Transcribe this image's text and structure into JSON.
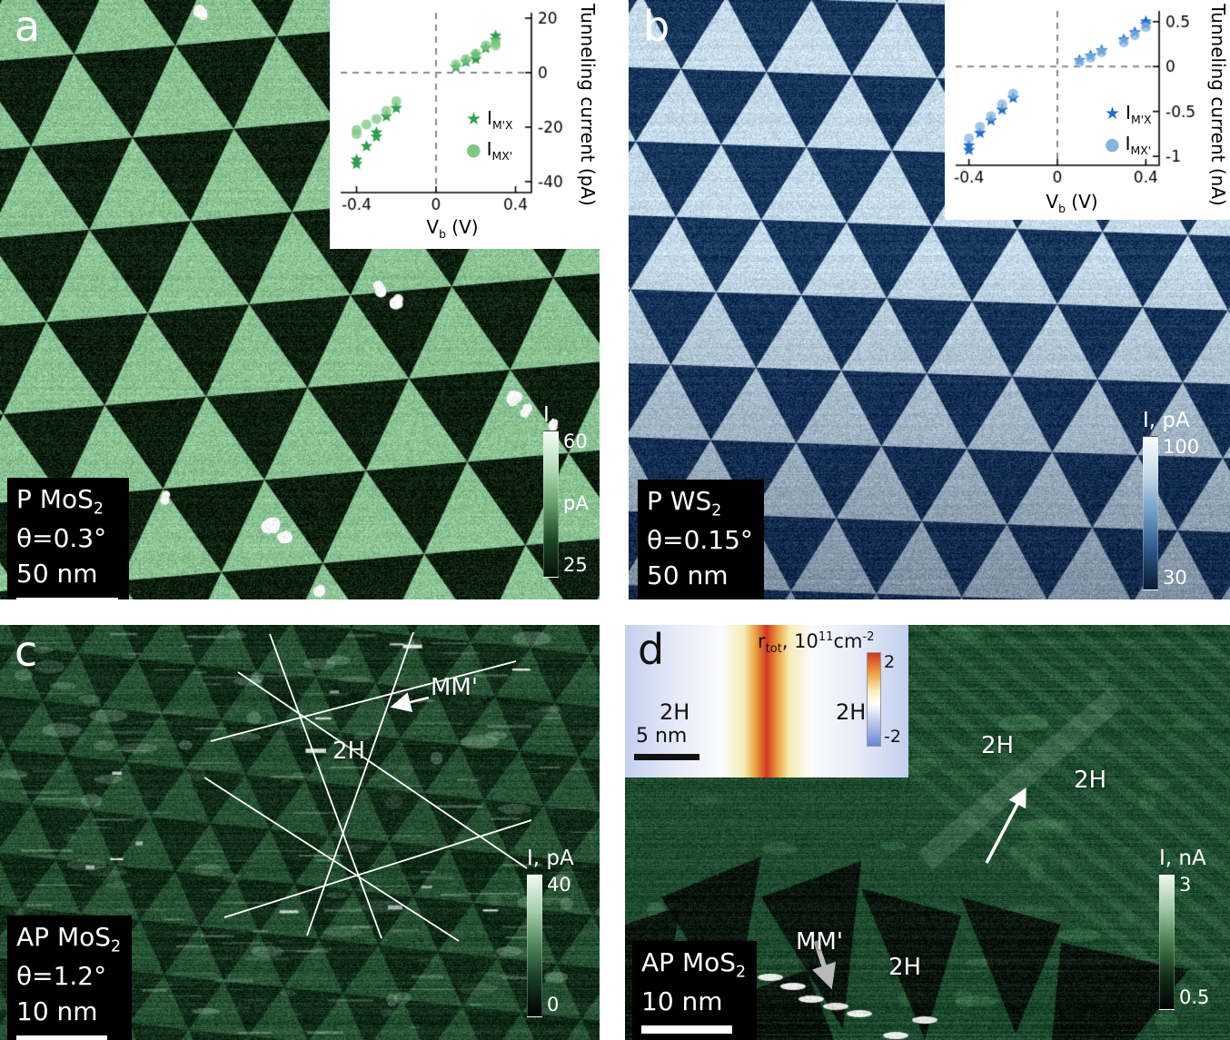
{
  "panels": {
    "a": {
      "letter": "a",
      "info": {
        "sample_pre": "P MoS",
        "sample_sub": "2",
        "theta": "θ=0.3°",
        "scalebar_label": "50 nm"
      },
      "colorbar": {
        "title": "I,",
        "unit": "pA",
        "max": "60",
        "min": "25",
        "colors": [
          "#f8fcf8",
          "#b6dcba",
          "#63a06c",
          "#1d4524",
          "#04120a"
        ]
      },
      "image_colors": {
        "light": "#8ac394",
        "dark": "#0a1f0e"
      }
    },
    "b": {
      "letter": "b",
      "info": {
        "sample_pre": "P WS",
        "sample_sub": "2",
        "theta": "θ=0.15°",
        "scalebar_label": "50 nm"
      },
      "colorbar": {
        "title": "I, pA",
        "max": "100",
        "min": "30",
        "colors": [
          "#fbfdff",
          "#c4d8e8",
          "#6f9cc4",
          "#2a5586",
          "#0a1830"
        ]
      },
      "image_colors": {
        "light": "#c6dbea",
        "dark": "#16365c"
      }
    },
    "c": {
      "letter": "c",
      "info": {
        "sample_pre": "AP MoS",
        "sample_sub": "2",
        "theta": "θ=1.2°",
        "scalebar_label": "10 nm"
      },
      "colorbar": {
        "title": "I, pA",
        "max": "40",
        "min": "0",
        "colors": [
          "#f4faf4",
          "#a8cfae",
          "#4d855a",
          "#143820",
          "#000000"
        ]
      },
      "annotations": {
        "mm": "MM'",
        "h2": "2H"
      },
      "image_colors": {
        "light": "#3a7049",
        "dark": "#0e2a17"
      }
    },
    "d": {
      "letter": "d",
      "info": {
        "sample_pre": "AP MoS",
        "sample_sub": "2",
        "scalebar_label": "10 nm"
      },
      "colorbar": {
        "title": "I, nA",
        "max": "3",
        "min": "0.5",
        "colors": [
          "#f0f8f0",
          "#a0c8a8",
          "#48804f",
          "#123018",
          "#000000"
        ]
      },
      "annotations": {
        "h2_upper": "2H",
        "h2_mid": "2H",
        "mm": "MM'",
        "h2_lower": "2H"
      },
      "image_colors": {
        "light": "#5a9a68",
        "dark": "#1d4a2d"
      },
      "inset": {
        "title_pre": "r",
        "title_sub": "tot",
        "title_mid": ", 10",
        "title_sup": "11",
        "title_unit": "cm",
        "title_sup2": "-2",
        "left_label": "2H",
        "right_label": "2H",
        "scalebar_label": "5 nm",
        "cb_max": "2",
        "cb_min": "-2",
        "gradient": [
          [
            "#c2cfee",
            0
          ],
          [
            "#e6ebf8",
            18
          ],
          [
            "#fbfbfd",
            34
          ],
          [
            "#f7ecb6",
            42
          ],
          [
            "#eda23f",
            46
          ],
          [
            "#d03722",
            50
          ],
          [
            "#eda23f",
            54
          ],
          [
            "#f7ecb6",
            58
          ],
          [
            "#fbfbfd",
            66
          ],
          [
            "#e6ebf8",
            82
          ],
          [
            "#c2cfee",
            100
          ]
        ],
        "cb_colors": [
          [
            "#d03722",
            0
          ],
          [
            "#eda23f",
            22
          ],
          [
            "#f7ecb6",
            40
          ],
          [
            "#ffffff",
            55
          ],
          [
            "#b9c7ea",
            75
          ],
          [
            "#6a86d8",
            100
          ]
        ]
      }
    }
  },
  "iv_labels": {
    "x_pre": "V",
    "x_sub": "b",
    "x_post": " (V)",
    "star_glyph": "★",
    "circle_glyph": "●",
    "l1_pre": "I",
    "l1_sub": "M'X",
    "l2_pre": "I",
    "l2_sub": "MX'"
  },
  "chart_data": [
    {
      "type": "scatter",
      "panel": "a",
      "xlabel": "V_b (V)",
      "ylabel": "Tunneling current (pA)",
      "xlim": [
        -0.48,
        0.48
      ],
      "ylim": [
        -44,
        22
      ],
      "xticks": [
        -0.4,
        0,
        0.4
      ],
      "yticks": [
        20,
        0,
        -20,
        -40
      ],
      "grid": "dashed-crosshair",
      "legend_position": "lower-right",
      "series": [
        {
          "name": "I_M'X",
          "marker": "star",
          "color": "#2f9e4f",
          "x": [
            -0.4,
            -0.4,
            -0.35,
            -0.3,
            -0.3,
            -0.25,
            -0.2,
            0.1,
            0.15,
            0.2,
            0.2,
            0.25,
            0.3,
            0.3
          ],
          "y": [
            -32,
            -33.5,
            -27,
            -22,
            -23.5,
            -16,
            -13,
            2,
            4,
            5,
            6.5,
            9,
            12,
            13.5
          ]
        },
        {
          "name": "I_MX'",
          "marker": "circle",
          "color": "#7cc87f",
          "alpha": 0.75,
          "x": [
            -0.4,
            -0.4,
            -0.35,
            -0.3,
            -0.25,
            -0.2,
            0.1,
            0.15,
            0.2,
            0.25,
            0.3,
            0.3
          ],
          "y": [
            -21,
            -22.5,
            -19,
            -17,
            -14,
            -10.5,
            3,
            5,
            7,
            10,
            11,
            10
          ]
        }
      ]
    },
    {
      "type": "scatter",
      "panel": "b",
      "xlabel": "V_b (V)",
      "ylabel": "Tunneling current (nA)",
      "xlim": [
        -0.46,
        0.46
      ],
      "ylim": [
        -1.1,
        0.62
      ],
      "xticks": [
        -0.4,
        0,
        0.4
      ],
      "yticks": [
        0.5,
        0,
        -0.5,
        -1
      ],
      "grid": "dashed-crosshair",
      "legend_position": "lower-right",
      "series": [
        {
          "name": "I_M'X",
          "marker": "star",
          "color": "#1f6fc4",
          "x": [
            -0.4,
            -0.4,
            -0.35,
            -0.3,
            -0.25,
            -0.2,
            0.1,
            0.15,
            0.2,
            0.3,
            0.35,
            0.4,
            0.4
          ],
          "y": [
            -0.88,
            -0.93,
            -0.74,
            -0.6,
            -0.48,
            -0.35,
            0.07,
            0.12,
            0.18,
            0.3,
            0.38,
            0.47,
            0.5
          ]
        },
        {
          "name": "I_MX'",
          "marker": "circle",
          "color": "#85b6e2",
          "alpha": 0.75,
          "x": [
            -0.4,
            -0.35,
            -0.3,
            -0.25,
            -0.2,
            0.1,
            0.15,
            0.2,
            0.3,
            0.35,
            0.4
          ],
          "y": [
            -0.8,
            -0.67,
            -0.55,
            -0.42,
            -0.3,
            0.05,
            0.1,
            0.16,
            0.27,
            0.35,
            0.44
          ]
        }
      ]
    },
    {
      "type": "heatmap",
      "panel": "d-inset",
      "title": "r_tot, 10^11 cm^-2",
      "clim": [
        -2,
        2
      ],
      "region_labels": [
        "2H",
        "2H"
      ],
      "scalebar": "5 nm"
    }
  ]
}
